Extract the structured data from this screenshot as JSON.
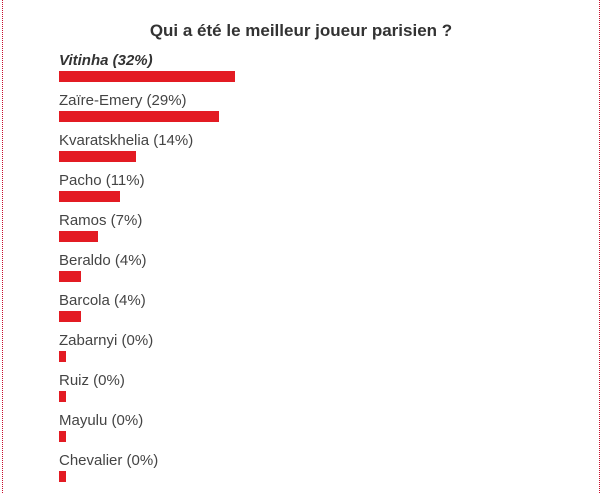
{
  "poll": {
    "title": "Qui a été le meilleur joueur parisien ?",
    "bar_color": "#e31b23",
    "options": [
      {
        "label": "Vitinha (32%)",
        "percent": 32
      },
      {
        "label": "Zaïre-Emery (29%)",
        "percent": 29
      },
      {
        "label": "Kvaratskhelia (14%)",
        "percent": 14
      },
      {
        "label": "Pacho (11%)",
        "percent": 11
      },
      {
        "label": "Ramos (7%)",
        "percent": 7
      },
      {
        "label": "Beraldo (4%)",
        "percent": 4
      },
      {
        "label": "Barcola (4%)",
        "percent": 4
      },
      {
        "label": "Zabarnyi (0%)",
        "percent": 0
      },
      {
        "label": "Ruiz (0%)",
        "percent": 0
      },
      {
        "label": "Mayulu (0%)",
        "percent": 0
      },
      {
        "label": "Chevalier (0%)",
        "percent": 0
      }
    ]
  }
}
